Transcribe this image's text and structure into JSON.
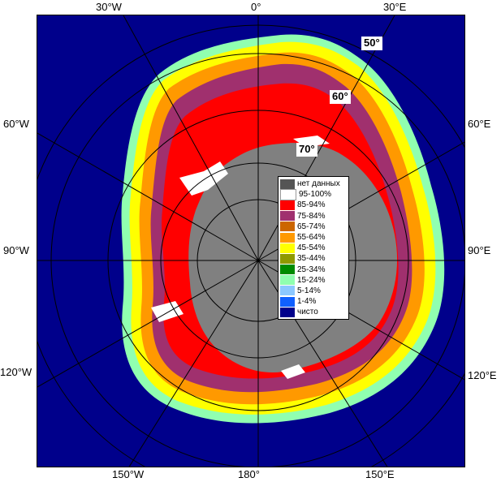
{
  "longitude_labels": {
    "top": [
      "30°W",
      "0°",
      "30°E"
    ],
    "left": [
      "60°W",
      "90°W",
      "120°W"
    ],
    "right": [
      "60°E",
      "90°E",
      "120°E"
    ],
    "bottom": [
      "150°W",
      "180°",
      "150°E"
    ]
  },
  "latitude_labels": [
    "50°",
    "60°",
    "70°"
  ],
  "legend": {
    "items": [
      {
        "label": "нет данных",
        "color": "#555555"
      },
      {
        "label": "95-100%",
        "color": "#ffffff"
      },
      {
        "label": "85-94%",
        "color": "#ff0000"
      },
      {
        "label": "75-84%",
        "color": "#a0306e"
      },
      {
        "label": "65-74%",
        "color": "#cc6600"
      },
      {
        "label": "55-64%",
        "color": "#ff9900"
      },
      {
        "label": "45-54%",
        "color": "#ffff00"
      },
      {
        "label": "35-44%",
        "color": "#8f9a00"
      },
      {
        "label": "25-34%",
        "color": "#008c00"
      },
      {
        "label": "15-24%",
        "color": "#90ffb0"
      },
      {
        "label": "5-14%",
        "color": "#8cc8ff"
      },
      {
        "label": "1-4%",
        "color": "#1060ff"
      },
      {
        "label": "чисто",
        "color": "#00008b"
      }
    ]
  },
  "colors": {
    "ocean": "#00008b",
    "land": "#808080",
    "grid": "#000000"
  }
}
